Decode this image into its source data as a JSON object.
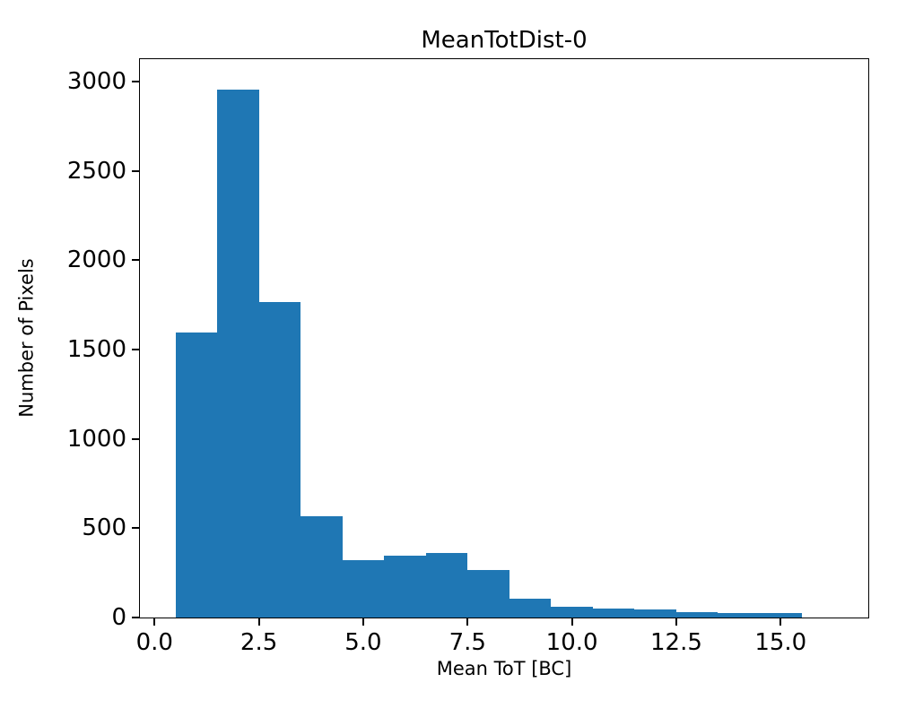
{
  "chart_data": {
    "type": "bar",
    "title": "MeanTotDist-0",
    "xlabel": "Mean ToT [BC]",
    "ylabel": "Number of Pixels",
    "bar_color": "#1f77b4",
    "bin_start": 0.5,
    "bin_width": 1.0,
    "values": [
      1595,
      2955,
      1765,
      565,
      320,
      345,
      360,
      265,
      105,
      60,
      50,
      45,
      30,
      25,
      25
    ],
    "xlim": [
      -0.35,
      17.1
    ],
    "ylim": [
      0,
      3125
    ],
    "xticks": [
      0.0,
      2.5,
      5.0,
      7.5,
      10.0,
      12.5,
      15.0
    ],
    "xtick_labels": [
      "0.0",
      "2.5",
      "5.0",
      "7.5",
      "10.0",
      "12.5",
      "15.0"
    ],
    "yticks": [
      0,
      500,
      1000,
      1500,
      2000,
      2500,
      3000
    ],
    "ytick_labels": [
      "0",
      "500",
      "1000",
      "1500",
      "2000",
      "2500",
      "3000"
    ],
    "grid": false,
    "legend": "none"
  }
}
